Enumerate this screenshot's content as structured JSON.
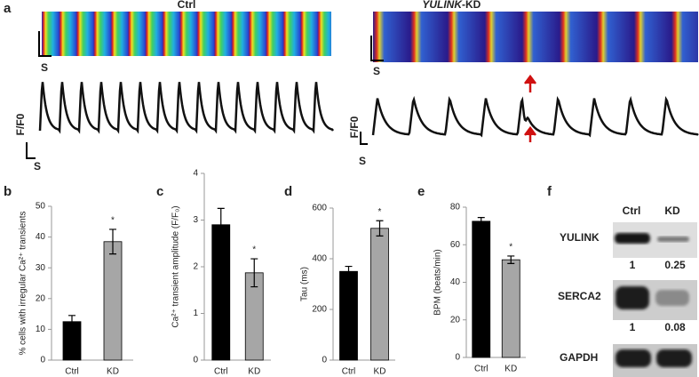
{
  "panel_a": {
    "label": "a",
    "ctrl_title": "Ctrl",
    "kd_title_gene": "YULINK",
    "kd_title_suffix": "-KD",
    "time_label": "S",
    "ratio_label": "F/F0"
  },
  "chart_data": [
    {
      "type": "bar",
      "panel_label": "b",
      "ylabel": "% cells with irregular Ca²⁺ transients",
      "categories": [
        "Ctrl",
        "KD"
      ],
      "values": [
        12.5,
        38.5
      ],
      "errors": [
        2,
        4
      ],
      "colors": [
        "#000000",
        "#a6a6a6"
      ],
      "ylim": [
        0,
        50
      ],
      "yticks": [
        0,
        10,
        20,
        30,
        40,
        50
      ],
      "annotation": "*"
    },
    {
      "type": "bar",
      "panel_label": "c",
      "ylabel": "Ca²⁺ transient amplitude (F/F₀)",
      "categories": [
        "Ctrl",
        "KD"
      ],
      "values": [
        2.9,
        1.87
      ],
      "errors": [
        0.35,
        0.3
      ],
      "colors": [
        "#000000",
        "#a6a6a6"
      ],
      "ylim": [
        0,
        4
      ],
      "yticks": [
        0,
        1,
        2,
        3,
        4
      ],
      "annotation": "*"
    },
    {
      "type": "bar",
      "panel_label": "d",
      "ylabel": "Tau (ms)",
      "categories": [
        "Ctrl",
        "KD"
      ],
      "values": [
        350,
        520
      ],
      "errors": [
        20,
        30
      ],
      "colors": [
        "#000000",
        "#a6a6a6"
      ],
      "ylim": [
        0,
        600
      ],
      "yticks": [
        0,
        200,
        400,
        600
      ],
      "annotation": "*"
    },
    {
      "type": "bar",
      "panel_label": "e",
      "ylabel": "BPM (beats/min)",
      "categories": [
        "Ctrl",
        "KD"
      ],
      "values": [
        72.5,
        52
      ],
      "errors": [
        2,
        2
      ],
      "colors": [
        "#000000",
        "#a6a6a6"
      ],
      "ylim": [
        0,
        80
      ],
      "yticks": [
        0,
        20,
        40,
        60,
        80
      ],
      "annotation": "*"
    }
  ],
  "panel_f": {
    "label": "f",
    "columns": [
      "Ctrl",
      "KD"
    ],
    "rows": [
      {
        "name": "YULINK",
        "quant": [
          1,
          0.25
        ]
      },
      {
        "name": "SERCA2",
        "quant": [
          1,
          0.08
        ]
      },
      {
        "name": "GAPDH"
      }
    ]
  }
}
